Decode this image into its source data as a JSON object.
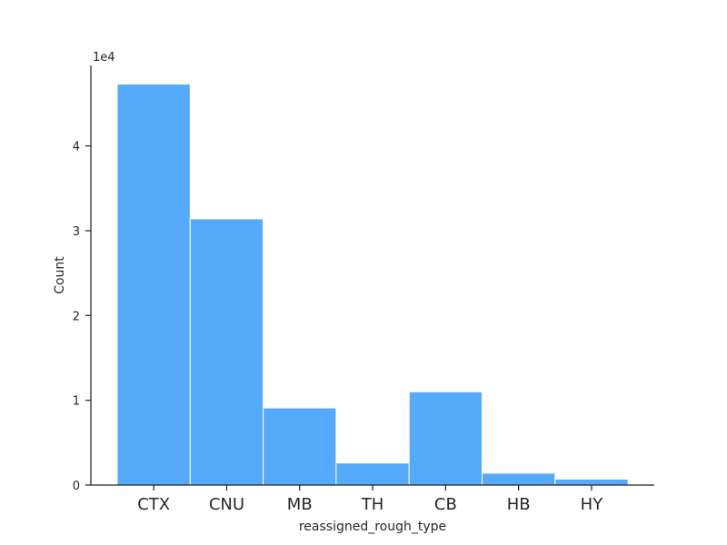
{
  "chart_data": {
    "type": "bar",
    "categories": [
      "CTX",
      "CNU",
      "MB",
      "TH",
      "CB",
      "HB",
      "HY"
    ],
    "values": [
      47300,
      31400,
      9100,
      2600,
      11000,
      1400,
      700
    ],
    "xlabel": "reassigned_rough_type",
    "ylabel": "Count",
    "y_offset_label": "1e4",
    "y_tick_values": [
      0,
      10000,
      20000,
      30000,
      40000
    ],
    "y_tick_labels": [
      "0",
      "1",
      "2",
      "3",
      "4"
    ],
    "ylim": [
      0,
      49500
    ],
    "grid": false,
    "bar_color": "#56aafb",
    "bar_edge_color": "#ffffff",
    "axis_color": "#262626"
  }
}
